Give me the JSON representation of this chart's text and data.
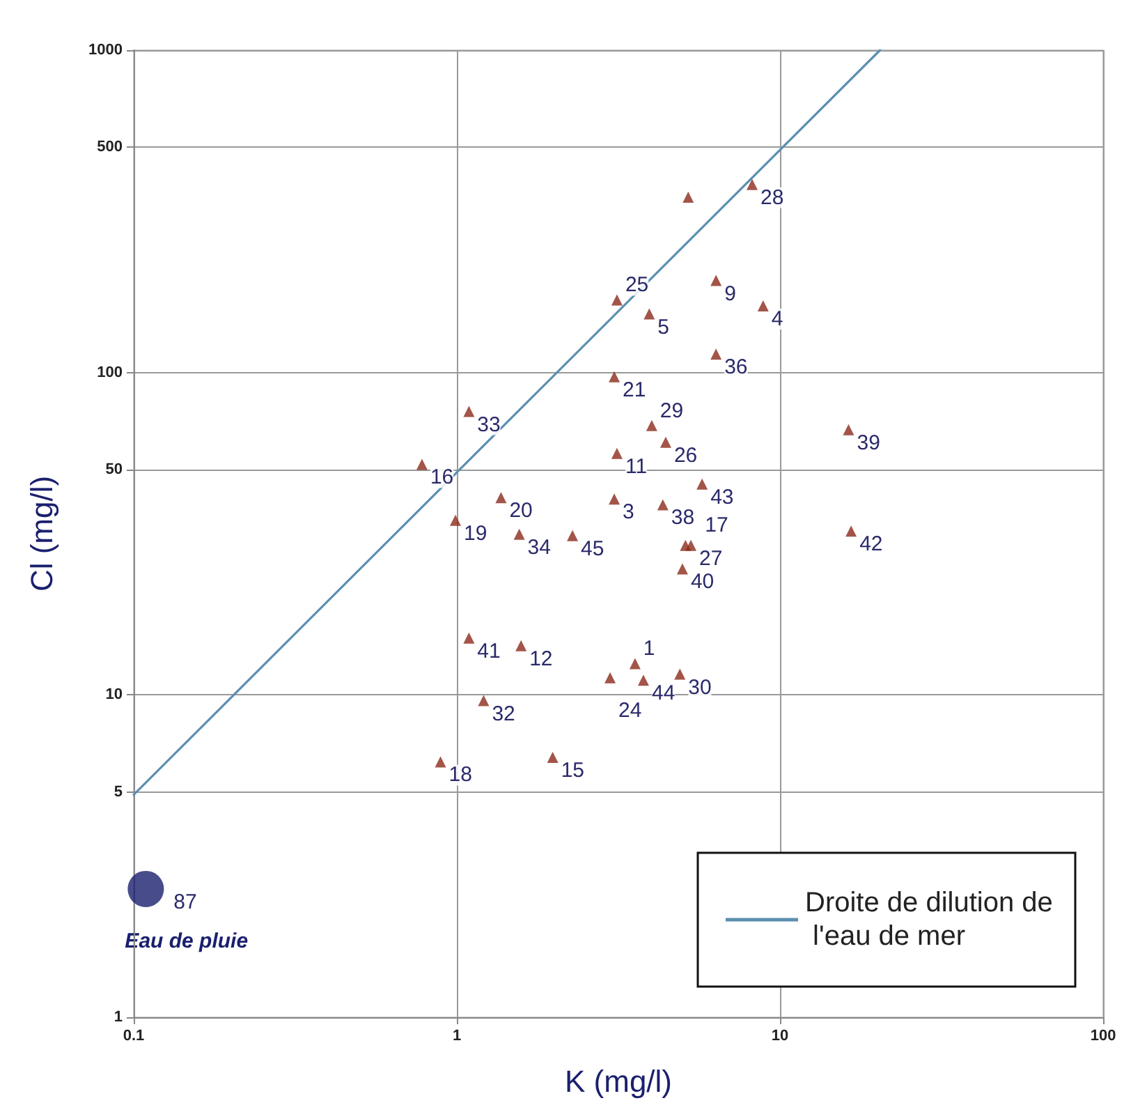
{
  "chart_data": {
    "type": "scatter",
    "xlabel": "K (mg/l)",
    "ylabel": "Cl (mg/l)",
    "log": "xy",
    "grid": true,
    "legend": "bottom right",
    "xlim": [
      0.1,
      100
    ],
    "xticks": [
      0.1,
      1,
      10,
      100
    ],
    "ylim": [
      1,
      1000
    ],
    "yticks": [
      1,
      5,
      10,
      50,
      100,
      500,
      1000
    ],
    "series": [
      {
        "color": "#8b2a1a",
        "marker": "triangle",
        "x": [
          1.09,
          0.78,
          1.37,
          0.99,
          1.56,
          5.2,
          8.2,
          3.13,
          3.94,
          6.34,
          8.87,
          6.34,
          3.07,
          4.01,
          4.43,
          3.13,
          16.3,
          5.74,
          3.07,
          4.34,
          16.6,
          2.28,
          5.3,
          5.1,
          4.99,
          1.09,
          1.58,
          1.21,
          0.89,
          1.98,
          2.98,
          3.56,
          3.78,
          4.9
        ],
        "values": [
          75.7,
          51.9,
          40.9,
          34.8,
          31.5,
          350,
          383,
          168,
          152,
          193,
          161,
          114,
          97,
          68.5,
          60.8,
          56.1,
          66.5,
          45.1,
          40.5,
          38.9,
          32.2,
          31.2,
          29.1,
          29.1,
          24.6,
          15.0,
          14.2,
          9.6,
          6.2,
          6.4,
          11.3,
          12.5,
          11.1,
          11.6
        ]
      },
      {
        "name": "Eau de pluie",
        "color": "#1a1f6e",
        "marker": "circle",
        "x": [
          0.109
        ],
        "values": [
          2.5
        ]
      },
      {
        "type": "line",
        "name": "Droite de dilution de l'eau de mer",
        "color": "#5b8fb0",
        "marker": "none",
        "line_style": "solid",
        "x": [
          0.1,
          20.4
        ],
        "values": [
          4.9,
          1000
        ]
      }
    ],
    "annotations": [
      {
        "text": "33",
        "x": 1.09,
        "y": 75.7
      },
      {
        "text": "16",
        "x": 0.78,
        "y": 51.9
      },
      {
        "text": "20",
        "x": 1.37,
        "y": 40.9
      },
      {
        "text": "19",
        "x": 0.99,
        "y": 34.8
      },
      {
        "text": "34",
        "x": 1.56,
        "y": 31.5
      },
      {
        "text": "28",
        "x": 8.2,
        "y": 383
      },
      {
        "text": "25",
        "x": 3.13,
        "y": 168
      },
      {
        "text": "5",
        "x": 3.94,
        "y": 152
      },
      {
        "text": "9",
        "x": 6.34,
        "y": 193
      },
      {
        "text": "4",
        "x": 8.87,
        "y": 161
      },
      {
        "text": "36",
        "x": 6.34,
        "y": 114
      },
      {
        "text": "21",
        "x": 3.07,
        "y": 97
      },
      {
        "text": "29",
        "x": 4.01,
        "y": 68.5
      },
      {
        "text": "26",
        "x": 4.43,
        "y": 60.8
      },
      {
        "text": "11",
        "x": 3.13,
        "y": 56.1
      },
      {
        "text": "39",
        "x": 16.3,
        "y": 66.5
      },
      {
        "text": "43",
        "x": 5.74,
        "y": 45.1
      },
      {
        "text": "3",
        "x": 3.07,
        "y": 40.5
      },
      {
        "text": "38",
        "x": 4.34,
        "y": 38.9
      },
      {
        "text": "42",
        "x": 16.6,
        "y": 32.2
      },
      {
        "text": "45",
        "x": 2.28,
        "y": 31.2
      },
      {
        "text": "27",
        "x": 5.3,
        "y": 29.1
      },
      {
        "text": "17",
        "x": 5.1,
        "y": 29.1
      },
      {
        "text": "40",
        "x": 4.99,
        "y": 24.6
      },
      {
        "text": "41",
        "x": 1.09,
        "y": 15.0
      },
      {
        "text": "12",
        "x": 1.58,
        "y": 14.2
      },
      {
        "text": "32",
        "x": 1.21,
        "y": 9.6
      },
      {
        "text": "18",
        "x": 0.89,
        "y": 6.2
      },
      {
        "text": "15",
        "x": 1.98,
        "y": 6.4
      },
      {
        "text": "24",
        "x": 2.98,
        "y": 11.3
      },
      {
        "text": "1",
        "x": 3.56,
        "y": 12.5
      },
      {
        "text": "44",
        "x": 3.78,
        "y": 11.1
      },
      {
        "text": "30",
        "x": 4.9,
        "y": 11.6
      },
      {
        "text": "87",
        "x": 0.109,
        "y": 2.5
      }
    ]
  }
}
